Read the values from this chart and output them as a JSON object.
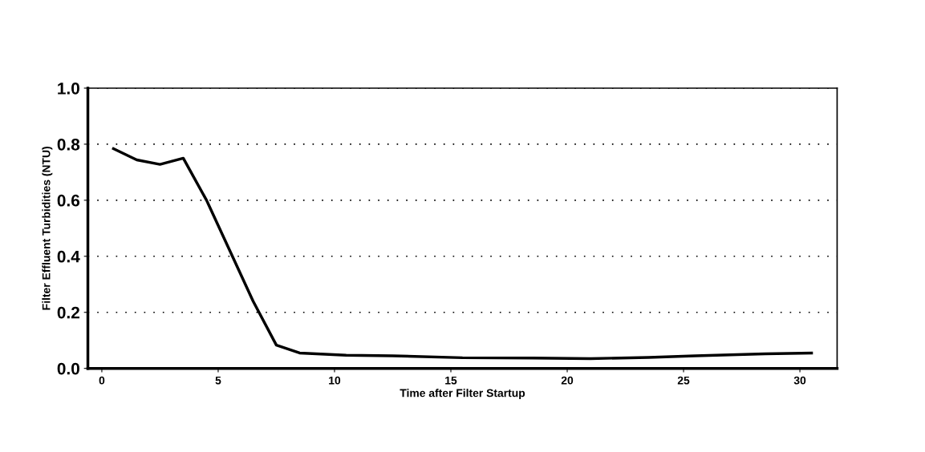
{
  "chart_data": {
    "type": "line",
    "xlabel": "Time after Filter Startup",
    "ylabel": "Filter Effluent Turbidities (NTU)",
    "x": [
      0.5,
      1.5,
      2.5,
      3.5,
      4.5,
      5.5,
      6.5,
      7.5,
      8.5,
      10.5,
      12.5,
      15.5,
      18.5,
      21.0,
      23.5,
      25.5,
      28.5,
      30.5
    ],
    "series": [
      {
        "color": "#000000",
        "values": [
          0.784,
          0.744,
          0.728,
          0.75,
          0.6,
          0.42,
          0.24,
          0.083,
          0.055,
          0.047,
          0.045,
          0.038,
          0.037,
          0.035,
          0.039,
          0.045,
          0.052,
          0.055
        ]
      }
    ],
    "xlim": [
      -0.6,
      31.6
    ],
    "ylim": [
      0.0,
      1.0
    ],
    "xticks": [
      0,
      5,
      10,
      15,
      20,
      25,
      30
    ],
    "yticks": [
      {
        "value": 0.0,
        "label": "0.0"
      },
      {
        "value": 0.2,
        "label": "0.2"
      },
      {
        "value": 0.4,
        "label": "0.4"
      },
      {
        "value": 0.6,
        "label": "0.6"
      },
      {
        "value": 0.8,
        "label": "0.8"
      },
      {
        "value": 1.0,
        "label": "1.0"
      }
    ],
    "grid": "y",
    "marker": "none",
    "line_style": "solid"
  }
}
